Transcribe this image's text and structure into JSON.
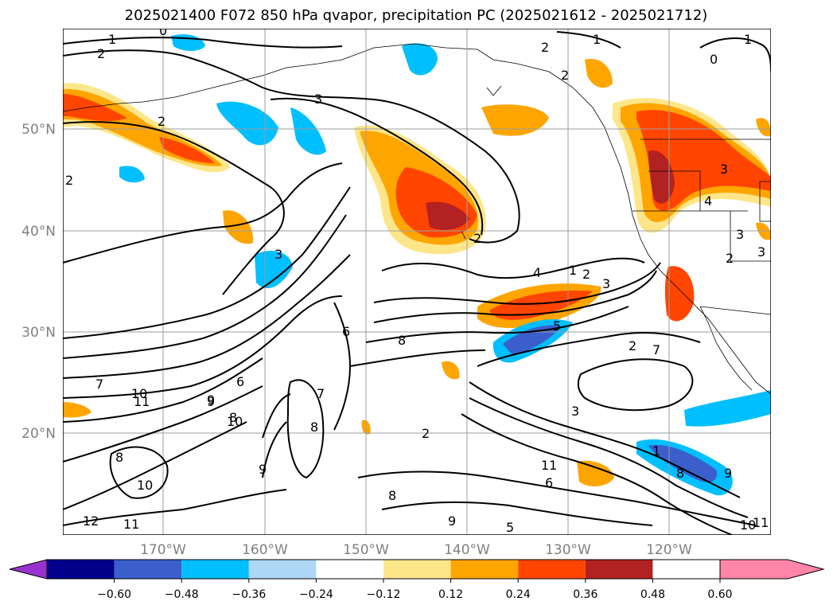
{
  "title": "2025021400 F072 850 hPa qvapor, precipitation PC (2025021612 - 2025021712)",
  "lat_labels": [
    "50°N",
    "40°N",
    "30°N",
    "20°N"
  ],
  "lon_labels": [
    "170°W",
    "160°W",
    "150°W",
    "140°W",
    "130°W",
    "120°W"
  ],
  "colorbar": {
    "tick_labels": [
      "−0.60",
      "−0.48",
      "−0.36",
      "−0.24",
      "−0.12",
      "0.12",
      "0.24",
      "0.36",
      "0.48",
      "0.60"
    ],
    "colors": [
      "#9932cc",
      "#00008b",
      "#3a5fcd",
      "#00bfff",
      "#add8f5",
      "#ffffff",
      "#fde68a",
      "#ffa500",
      "#ff4500",
      "#b22222",
      "#ff85a8"
    ]
  },
  "contour_labels": [
    "0",
    "1",
    "2",
    "1",
    "2",
    "3",
    "2",
    "2",
    "1",
    "0",
    "2",
    "1",
    "2",
    "3",
    "4",
    "2",
    "3",
    "3",
    "3",
    "2",
    "3",
    "4",
    "2",
    "3",
    "5",
    "6",
    "7",
    "8",
    "9",
    "10",
    "11",
    "12",
    "11",
    "10",
    "9",
    "8",
    "7",
    "6",
    "7",
    "8",
    "9",
    "10",
    "11",
    "6",
    "8",
    "9",
    "5",
    "8",
    "2",
    "1",
    "8",
    "9",
    "10",
    "11",
    "7",
    "9",
    "8",
    "4",
    "5",
    "6",
    "2",
    "8",
    "9",
    "10",
    "3"
  ],
  "legend_note": ""
}
